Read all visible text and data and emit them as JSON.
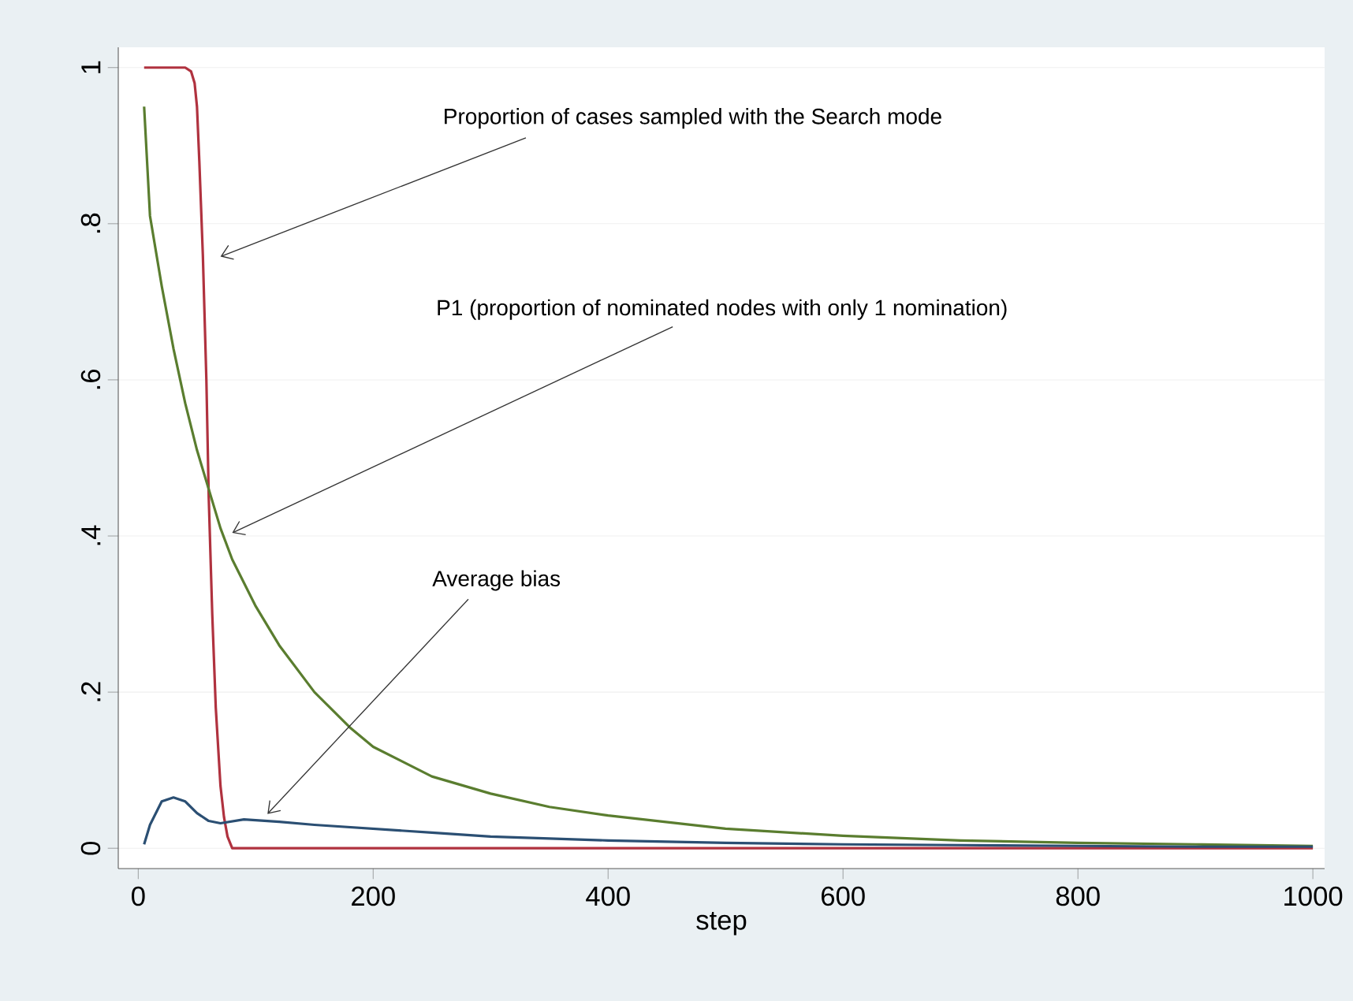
{
  "chart_data": {
    "type": "line",
    "xlabel": "step",
    "xlim": [
      -17,
      1010
    ],
    "ylim": [
      -0.026,
      1.026
    ],
    "xticks": [
      0,
      200,
      400,
      600,
      800,
      1000
    ],
    "yticks": [
      {
        "value": 0,
        "label": "0"
      },
      {
        "value": 0.2,
        "label": ".2"
      },
      {
        "value": 0.4,
        "label": ".4"
      },
      {
        "value": 0.6,
        "label": ".6"
      },
      {
        "value": 0.8,
        "label": ".8"
      },
      {
        "value": 1,
        "label": "1"
      }
    ],
    "grid": "y",
    "marker": "none",
    "line_style": "solid",
    "series": [
      {
        "color": "#b0323f",
        "x": [
          5,
          20,
          40,
          45,
          48,
          50,
          52,
          55,
          58,
          60,
          63,
          66,
          70,
          73,
          76,
          80,
          100,
          200,
          400,
          600,
          800,
          1000
        ],
        "values": [
          1,
          1,
          1,
          0.995,
          0.98,
          0.95,
          0.88,
          0.76,
          0.6,
          0.45,
          0.3,
          0.18,
          0.08,
          0.04,
          0.015,
          0,
          0,
          0,
          0,
          0,
          0,
          0
        ]
      },
      {
        "color": "#5a7d2f",
        "x": [
          5,
          10,
          20,
          30,
          40,
          50,
          60,
          70,
          80,
          100,
          120,
          150,
          180,
          200,
          250,
          300,
          350,
          400,
          500,
          600,
          700,
          800,
          900,
          1000
        ],
        "values": [
          0.95,
          0.81,
          0.72,
          0.64,
          0.57,
          0.51,
          0.46,
          0.41,
          0.37,
          0.31,
          0.26,
          0.2,
          0.155,
          0.13,
          0.092,
          0.07,
          0.053,
          0.042,
          0.025,
          0.016,
          0.01,
          0.007,
          0.005,
          0.003
        ]
      },
      {
        "color": "#2b4f73",
        "x": [
          5,
          10,
          20,
          30,
          40,
          50,
          60,
          70,
          90,
          120,
          150,
          200,
          250,
          300,
          400,
          500,
          600,
          700,
          800,
          900,
          1000
        ],
        "values": [
          0.005,
          0.03,
          0.06,
          0.065,
          0.06,
          0.045,
          0.035,
          0.032,
          0.037,
          0.034,
          0.03,
          0.025,
          0.02,
          0.015,
          0.01,
          0.007,
          0.005,
          0.004,
          0.003,
          0.002,
          0.002
        ]
      }
    ],
    "annotations": [
      "Proportion of cases sampled with the Search mode",
      "P1 (proportion of nominated nodes with only 1 nomination)",
      {
        "text": "Average bias",
        "x": 110,
        "y": 0.044
      }
    ]
  }
}
